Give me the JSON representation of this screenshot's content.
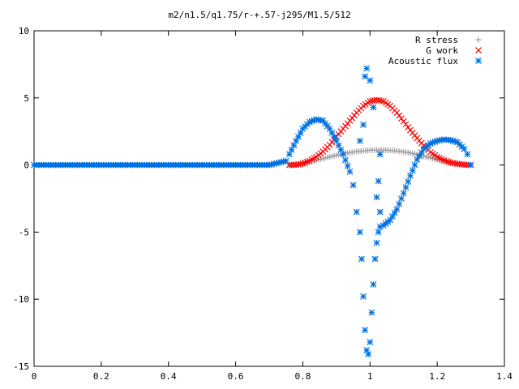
{
  "chart_data": {
    "type": "scatter",
    "title": "m2/n1.5/q1.75/r-+.57-j295/M1.5/512",
    "xlabel": "",
    "ylabel": "",
    "xlim": [
      0,
      1.4
    ],
    "ylim": [
      -15,
      10
    ],
    "grid": false,
    "legend_position": "top-right",
    "x_ticks": [
      "0",
      "0.2",
      "0.4",
      "0.6",
      "0.8",
      "1",
      "1.2",
      "1.4"
    ],
    "y_ticks": [
      "-15",
      "-10",
      "-5",
      "0",
      "5",
      "10"
    ],
    "series": [
      {
        "name": "R stress",
        "marker": "plus",
        "color": "#a0a0a0",
        "points": [
          [
            0.76,
            0.0
          ],
          [
            0.8,
            0.15
          ],
          [
            0.84,
            0.35
          ],
          [
            0.88,
            0.6
          ],
          [
            0.92,
            0.85
          ],
          [
            0.96,
            1.0
          ],
          [
            1.0,
            1.1
          ],
          [
            1.04,
            1.12
          ],
          [
            1.08,
            1.05
          ],
          [
            1.12,
            0.9
          ],
          [
            1.16,
            0.65
          ],
          [
            1.2,
            0.4
          ],
          [
            1.24,
            0.2
          ],
          [
            1.28,
            0.08
          ],
          [
            1.3,
            0.0
          ]
        ]
      },
      {
        "name": "G work",
        "marker": "cross",
        "color": "#ff0000",
        "points": [
          [
            0.76,
            0.0
          ],
          [
            0.78,
            0.02
          ],
          [
            0.8,
            0.1
          ],
          [
            0.82,
            0.3
          ],
          [
            0.84,
            0.6
          ],
          [
            0.86,
            1.0
          ],
          [
            0.88,
            1.5
          ],
          [
            0.9,
            2.1
          ],
          [
            0.92,
            2.7
          ],
          [
            0.94,
            3.3
          ],
          [
            0.96,
            3.9
          ],
          [
            0.98,
            4.4
          ],
          [
            1.0,
            4.75
          ],
          [
            1.02,
            4.85
          ],
          [
            1.04,
            4.75
          ],
          [
            1.06,
            4.4
          ],
          [
            1.08,
            3.9
          ],
          [
            1.1,
            3.25
          ],
          [
            1.12,
            2.6
          ],
          [
            1.14,
            2.0
          ],
          [
            1.16,
            1.45
          ],
          [
            1.18,
            0.95
          ],
          [
            1.2,
            0.6
          ],
          [
            1.22,
            0.35
          ],
          [
            1.24,
            0.18
          ],
          [
            1.26,
            0.08
          ],
          [
            1.28,
            0.02
          ],
          [
            1.3,
            0.0
          ]
        ]
      },
      {
        "name": "Acoustic flux",
        "marker": "star",
        "color": "#0070e0",
        "points": [
          [
            0.0,
            0.0
          ],
          [
            0.1,
            0.0
          ],
          [
            0.2,
            0.0
          ],
          [
            0.3,
            0.0
          ],
          [
            0.4,
            0.0
          ],
          [
            0.5,
            0.0
          ],
          [
            0.6,
            0.0
          ],
          [
            0.7,
            0.0
          ],
          [
            0.75,
            0.3
          ],
          [
            0.76,
            0.8
          ],
          [
            0.78,
            1.8
          ],
          [
            0.8,
            2.7
          ],
          [
            0.82,
            3.2
          ],
          [
            0.84,
            3.4
          ],
          [
            0.86,
            3.3
          ],
          [
            0.88,
            2.7
          ],
          [
            0.9,
            1.8
          ],
          [
            0.92,
            0.8
          ],
          [
            0.94,
            -0.5
          ],
          [
            0.95,
            -1.5
          ],
          [
            0.96,
            -3.5
          ],
          [
            0.97,
            -5.0
          ],
          [
            0.975,
            -7.0
          ],
          [
            0.98,
            -9.8
          ],
          [
            0.985,
            -12.3
          ],
          [
            0.99,
            -13.8
          ],
          [
            0.995,
            -14.1
          ],
          [
            1.0,
            -13.2
          ],
          [
            1.005,
            -11.0
          ],
          [
            1.01,
            -8.9
          ],
          [
            1.015,
            -7.0
          ],
          [
            1.02,
            -5.8
          ],
          [
            1.025,
            -5.0
          ],
          [
            1.03,
            -4.6
          ],
          [
            1.04,
            -4.5
          ],
          [
            1.06,
            -4.1
          ],
          [
            1.08,
            -3.3
          ],
          [
            1.1,
            -2.1
          ],
          [
            1.12,
            -0.8
          ],
          [
            1.14,
            0.4
          ],
          [
            1.16,
            1.2
          ],
          [
            1.18,
            1.6
          ],
          [
            1.2,
            1.8
          ],
          [
            1.22,
            1.9
          ],
          [
            1.24,
            1.85
          ],
          [
            1.26,
            1.7
          ],
          [
            1.28,
            1.2
          ],
          [
            1.29,
            0.8
          ],
          [
            1.3,
            0.0
          ],
          [
            0.985,
            6.6
          ],
          [
            0.99,
            7.2
          ],
          [
            1.0,
            6.3
          ],
          [
            1.01,
            4.3
          ],
          [
            0.98,
            3.0
          ],
          [
            0.97,
            1.8
          ],
          [
            1.03,
            0.8
          ],
          [
            1.025,
            -1.2
          ],
          [
            1.02,
            -2.4
          ],
          [
            1.03,
            -3.5
          ]
        ]
      }
    ]
  }
}
